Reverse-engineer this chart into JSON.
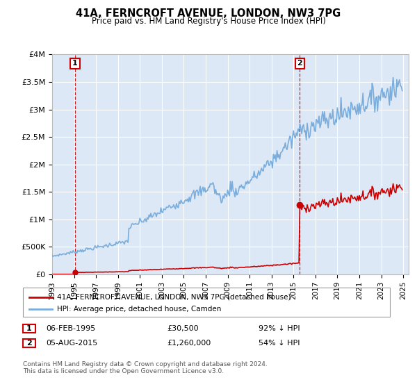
{
  "title": "41A, FERNCROFT AVENUE, LONDON, NW3 7PG",
  "subtitle": "Price paid vs. HM Land Registry's House Price Index (HPI)",
  "property_label": "41A, FERNCROFT AVENUE, LONDON, NW3 7PG (detached house)",
  "hpi_label": "HPI: Average price, detached house, Camden",
  "annotation1_box": "1",
  "annotation1_date": "06-FEB-1995",
  "annotation1_price": "£30,500",
  "annotation1_hpi": "92% ↓ HPI",
  "annotation2_box": "2",
  "annotation2_date": "05-AUG-2015",
  "annotation2_price": "£1,260,000",
  "annotation2_hpi": "54% ↓ HPI",
  "footer": "Contains HM Land Registry data © Crown copyright and database right 2024.\nThis data is licensed under the Open Government Licence v3.0.",
  "ylim": [
    0,
    4000000
  ],
  "yticks": [
    0,
    500000,
    1000000,
    1500000,
    2000000,
    2500000,
    3000000,
    3500000,
    4000000
  ],
  "ytick_labels": [
    "£0",
    "£500K",
    "£1M",
    "£1.5M",
    "£2M",
    "£2.5M",
    "£3M",
    "£3.5M",
    "£4M"
  ],
  "hpi_color": "#7aaddc",
  "property_color": "#cc0000",
  "dashed_line_color": "#cc0000",
  "annotation_box_color": "#cc0000",
  "background_color": "#ffffff",
  "plot_bg_color": "#dce8f5",
  "grid_color": "#ffffff",
  "sale1_year": 1995.09,
  "sale1_price": 30500,
  "sale2_year": 2015.58,
  "sale2_price": 1260000,
  "xmin": 1993.0,
  "xmax": 2025.5,
  "xtick_years": [
    1993,
    1995,
    1997,
    1999,
    2001,
    2003,
    2005,
    2007,
    2009,
    2011,
    2013,
    2015,
    2017,
    2019,
    2021,
    2023,
    2025
  ]
}
